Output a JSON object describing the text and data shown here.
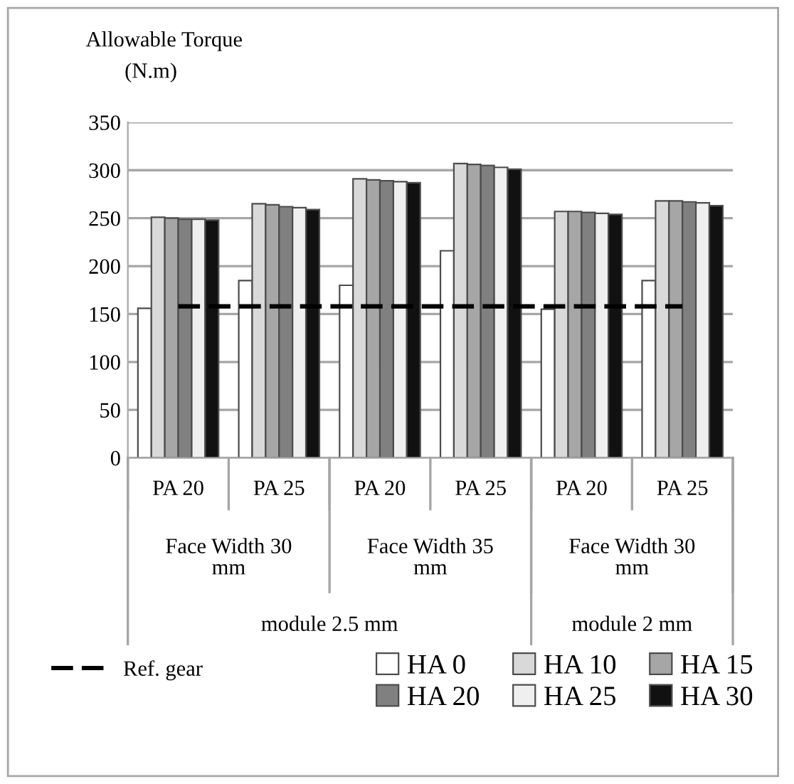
{
  "chart_data": {
    "type": "bar",
    "ylabel": "Allowable Torque (N.m)",
    "categories": [
      "PA 20",
      "PA 25",
      "PA 20",
      "PA 25",
      "PA 20",
      "PA 25"
    ],
    "series": [
      {
        "name": "Ref. gear",
        "type": "line",
        "color": "#000000",
        "line_style": "dashed",
        "marker": "none",
        "values": [
          158,
          158,
          158,
          158,
          158,
          158
        ]
      },
      {
        "name": "HA 0",
        "color": "#ffffff",
        "values": [
          156,
          185,
          180,
          216,
          155,
          185
        ]
      },
      {
        "name": "HA 10",
        "color": "#d9d9d9",
        "values": [
          251,
          265,
          291,
          307,
          257,
          268
        ]
      },
      {
        "name": "HA 15",
        "color": "#a6a6a6",
        "values": [
          250,
          264,
          290,
          306,
          257,
          268
        ]
      },
      {
        "name": "HA 20",
        "color": "#808080",
        "values": [
          249,
          262,
          289,
          305,
          256,
          267
        ]
      },
      {
        "name": "HA 25",
        "color": "#efefef",
        "values": [
          249,
          261,
          288,
          303,
          255,
          266
        ]
      },
      {
        "name": "HA 30",
        "color": "#111111",
        "values": [
          248,
          259,
          287,
          301,
          254,
          263
        ]
      }
    ],
    "annotations": [
      "Face Width 30 mm",
      "Face Width 35 mm",
      "Face Width 30 mm",
      "module 2.5 mm",
      "module 2 mm"
    ],
    "ylim": [
      0,
      350
    ],
    "yticks": [
      0,
      50,
      100,
      150,
      200,
      250,
      300,
      350
    ],
    "grid": "y",
    "legend": "bottom"
  }
}
